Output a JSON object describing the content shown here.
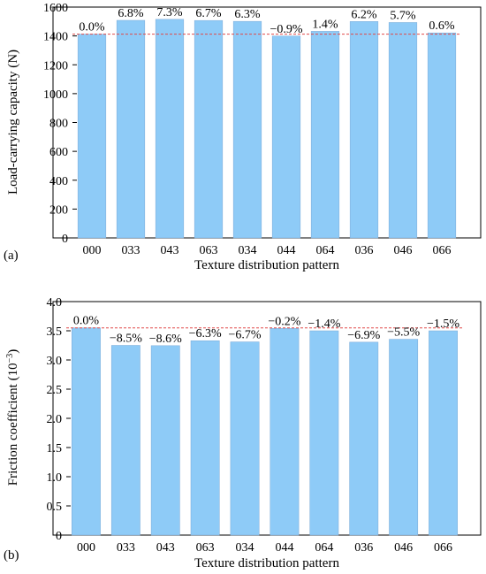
{
  "chart_data": [
    {
      "type": "bar",
      "panel_label": "(a)",
      "xlabel": "Texture distribution pattern",
      "ylabel": "Load-carrying capacity (N)",
      "ylim": [
        0,
        1600
      ],
      "yticks": [
        "0",
        "200",
        "400",
        "600",
        "800",
        "1000",
        "1200",
        "1400",
        "1600"
      ],
      "categories": [
        "000",
        "033",
        "043",
        "063",
        "034",
        "044",
        "064",
        "036",
        "046",
        "066"
      ],
      "values": [
        1412,
        1508,
        1515,
        1507,
        1501,
        1399,
        1432,
        1500,
        1493,
        1421
      ],
      "data_labels": [
        "0.0%",
        "6.8%",
        "7.3%",
        "6.7%",
        "6.3%",
        "−0.9%",
        "1.4%",
        "6.2%",
        "5.7%",
        "0.6%"
      ],
      "label_colors": [
        "#2e7d32",
        "#2e7d32",
        "#2e7d32",
        "#2e7d32",
        "#2e7d32",
        "#d32f2f",
        "#2e7d32",
        "#2e7d32",
        "#2e7d32",
        "#2e7d32"
      ],
      "reference_line": 1412,
      "bar_color": "#8ecbf7",
      "reference_color": "#e04a4a"
    },
    {
      "type": "bar",
      "panel_label": "(b)",
      "xlabel": "Texture distribution pattern",
      "ylabel": "Friction coefficient (10",
      "ylabel_sup": "−3",
      "ylabel_end": ")",
      "ylim": [
        0,
        4
      ],
      "yticks": [
        "0",
        "0.5",
        "1.0",
        "1.5",
        "2.0",
        "2.5",
        "3.0",
        "3.5",
        "4.0"
      ],
      "categories": [
        "000",
        "033",
        "043",
        "063",
        "034",
        "044",
        "064",
        "036",
        "046",
        "066"
      ],
      "values": [
        3.55,
        3.25,
        3.245,
        3.33,
        3.31,
        3.54,
        3.5,
        3.305,
        3.355,
        3.5
      ],
      "data_labels": [
        "0.0%",
        "−8.5%",
        "−8.6%",
        "−6.3%",
        "−6.7%",
        "−0.2%",
        "−1.4%",
        "−6.9%",
        "−5.5%",
        "−1.5%"
      ],
      "label_colors": [
        "#2e7d32",
        "#d32f2f",
        "#d32f2f",
        "#d32f2f",
        "#d32f2f",
        "#d32f2f",
        "#d32f2f",
        "#d32f2f",
        "#d32f2f",
        "#d32f2f"
      ],
      "reference_line": 3.55,
      "bar_color": "#8ecbf7",
      "reference_color": "#e04a4a"
    }
  ]
}
